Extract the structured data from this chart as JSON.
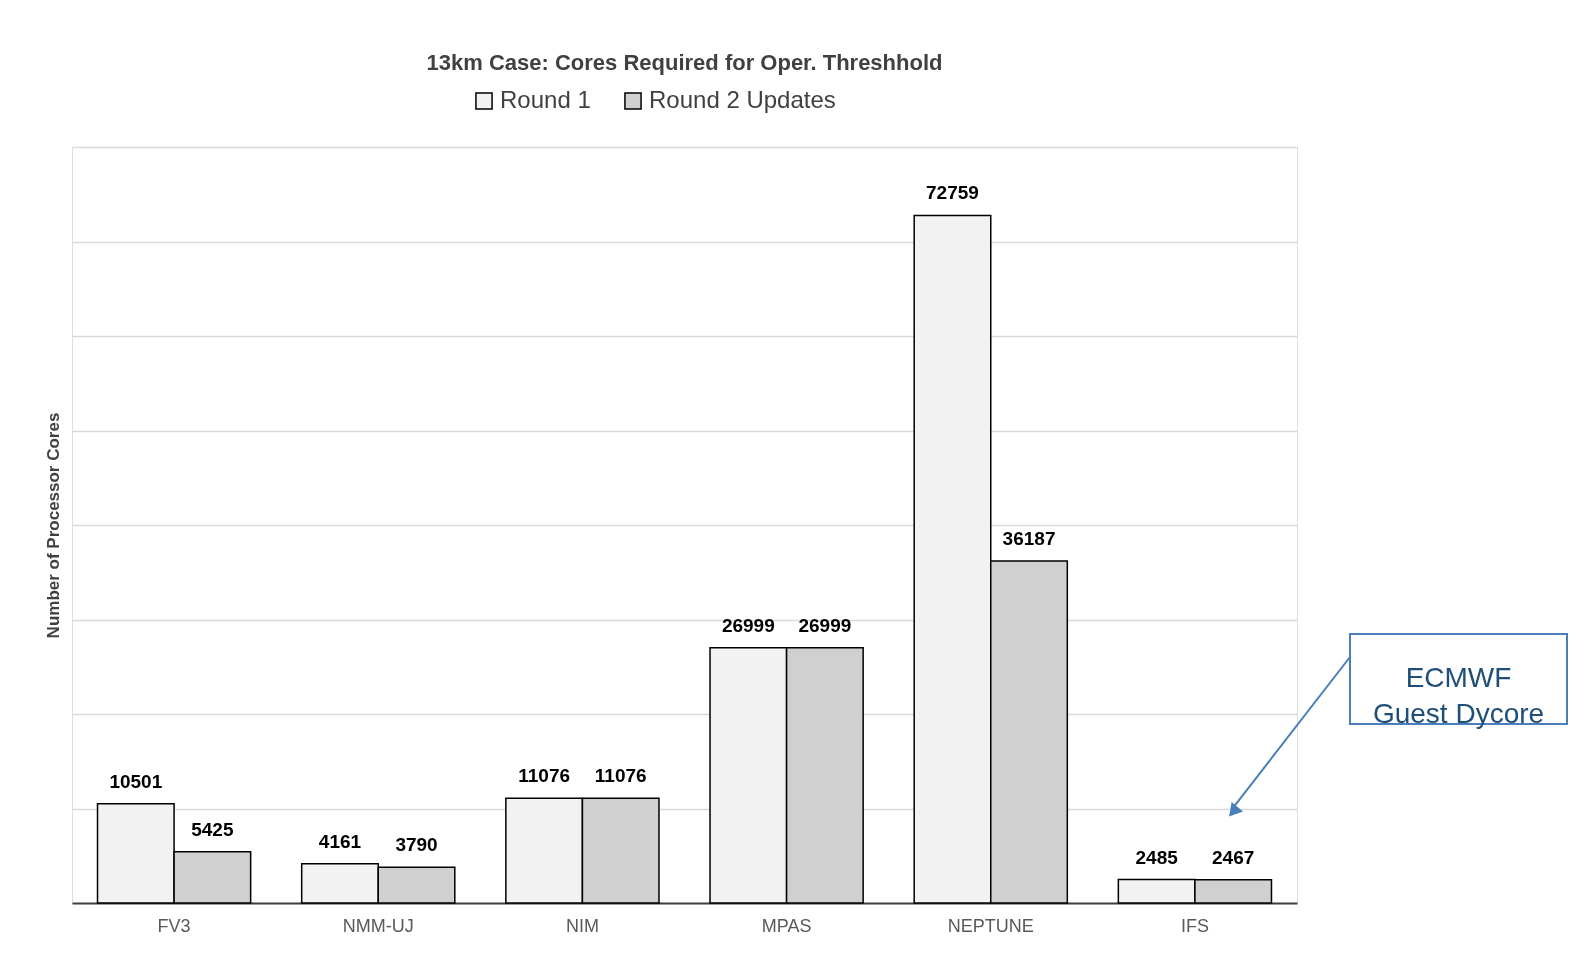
{
  "chart_data": {
    "type": "bar",
    "title": "13km Case: Cores Required for Oper. Threshhold",
    "ylabel": "Number of Processor Cores",
    "categories": [
      "FV3",
      "NMM-UJ",
      "NIM",
      "MPAS",
      "NEPTUNE",
      "IFS"
    ],
    "series": [
      {
        "name": "Round 1",
        "color": "#f2f2f2",
        "values": [
          10501,
          4161,
          11076,
          26999,
          72759,
          2485
        ]
      },
      {
        "name": "Round 2 Updates",
        "color": "#d0d0d0",
        "values": [
          5425,
          3790,
          11076,
          26999,
          36187,
          2467
        ]
      }
    ],
    "ylim": [
      0,
      80000
    ],
    "yticks": [
      {
        "value": 0,
        "label": null
      },
      {
        "value": 10000,
        "label": null
      },
      {
        "value": 20000,
        "label": null
      },
      {
        "value": 30000,
        "label": null
      },
      {
        "value": 40000,
        "label": null
      },
      {
        "value": 50000,
        "label": null
      },
      {
        "value": 60000,
        "label": null
      },
      {
        "value": 70000,
        "label": null
      },
      {
        "value": 80000,
        "label": null
      }
    ],
    "tick_labels": "x",
    "grid": "y",
    "legend": "top",
    "data_labels": true,
    "annotations": [
      "ECMWF\nGuest Dycore"
    ]
  }
}
